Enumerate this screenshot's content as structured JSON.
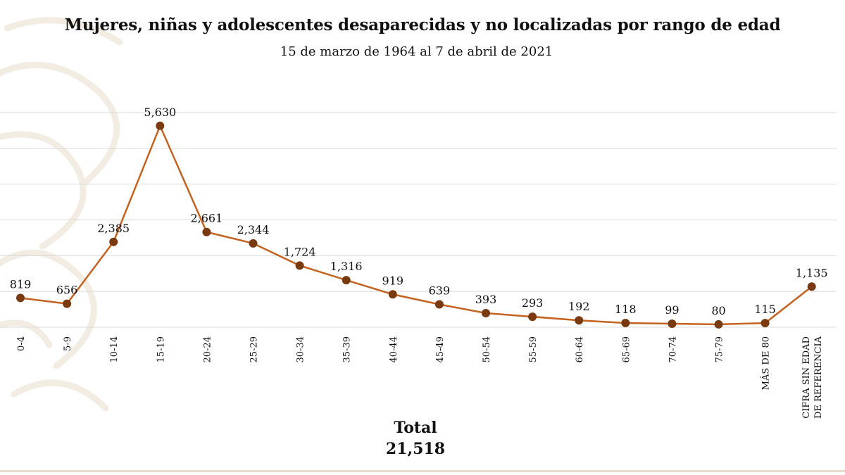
{
  "title": "Mujeres, niñas y adolescentes desaparecidas y no localizadas por rango de edad",
  "subtitle": "15 de marzo de 1964 al 7 de abril de 2021",
  "total": {
    "label": "Total",
    "value": "21,518"
  },
  "colors": {
    "line": "#c4621f",
    "marker": "#7a3a10",
    "grid": "#d9d9d9",
    "pattern": "#efe8dc"
  },
  "chart_data": {
    "type": "line",
    "title": "Mujeres, niñas y adolescentes desaparecidas y no localizadas por rango de edad",
    "subtitle": "15 de marzo de 1964 al 7 de abril de 2021",
    "xlabel": "",
    "ylabel": "",
    "ylim": [
      0,
      6000
    ],
    "grid": true,
    "legend": "none",
    "categories": [
      "0-4",
      "5-9",
      "10-14",
      "15-19",
      "20-24",
      "25-29",
      "30-34",
      "35-39",
      "40-44",
      "45-49",
      "50-54",
      "55-59",
      "60-64",
      "65-69",
      "70-74",
      "75-79",
      "MÁS DE 80",
      "CIFRA SIN EDAD DE REFERENCIA"
    ],
    "values": [
      819,
      656,
      2385,
      5630,
      2661,
      2344,
      1724,
      1316,
      919,
      639,
      393,
      293,
      192,
      118,
      99,
      80,
      115,
      1135
    ],
    "data_labels": [
      "819",
      "656",
      "2,385",
      "5,630",
      "2,661",
      "2,344",
      "1,724",
      "1,316",
      "919",
      "639",
      "393",
      "293",
      "192",
      "118",
      "99",
      "80",
      "115",
      "1,135"
    ]
  }
}
